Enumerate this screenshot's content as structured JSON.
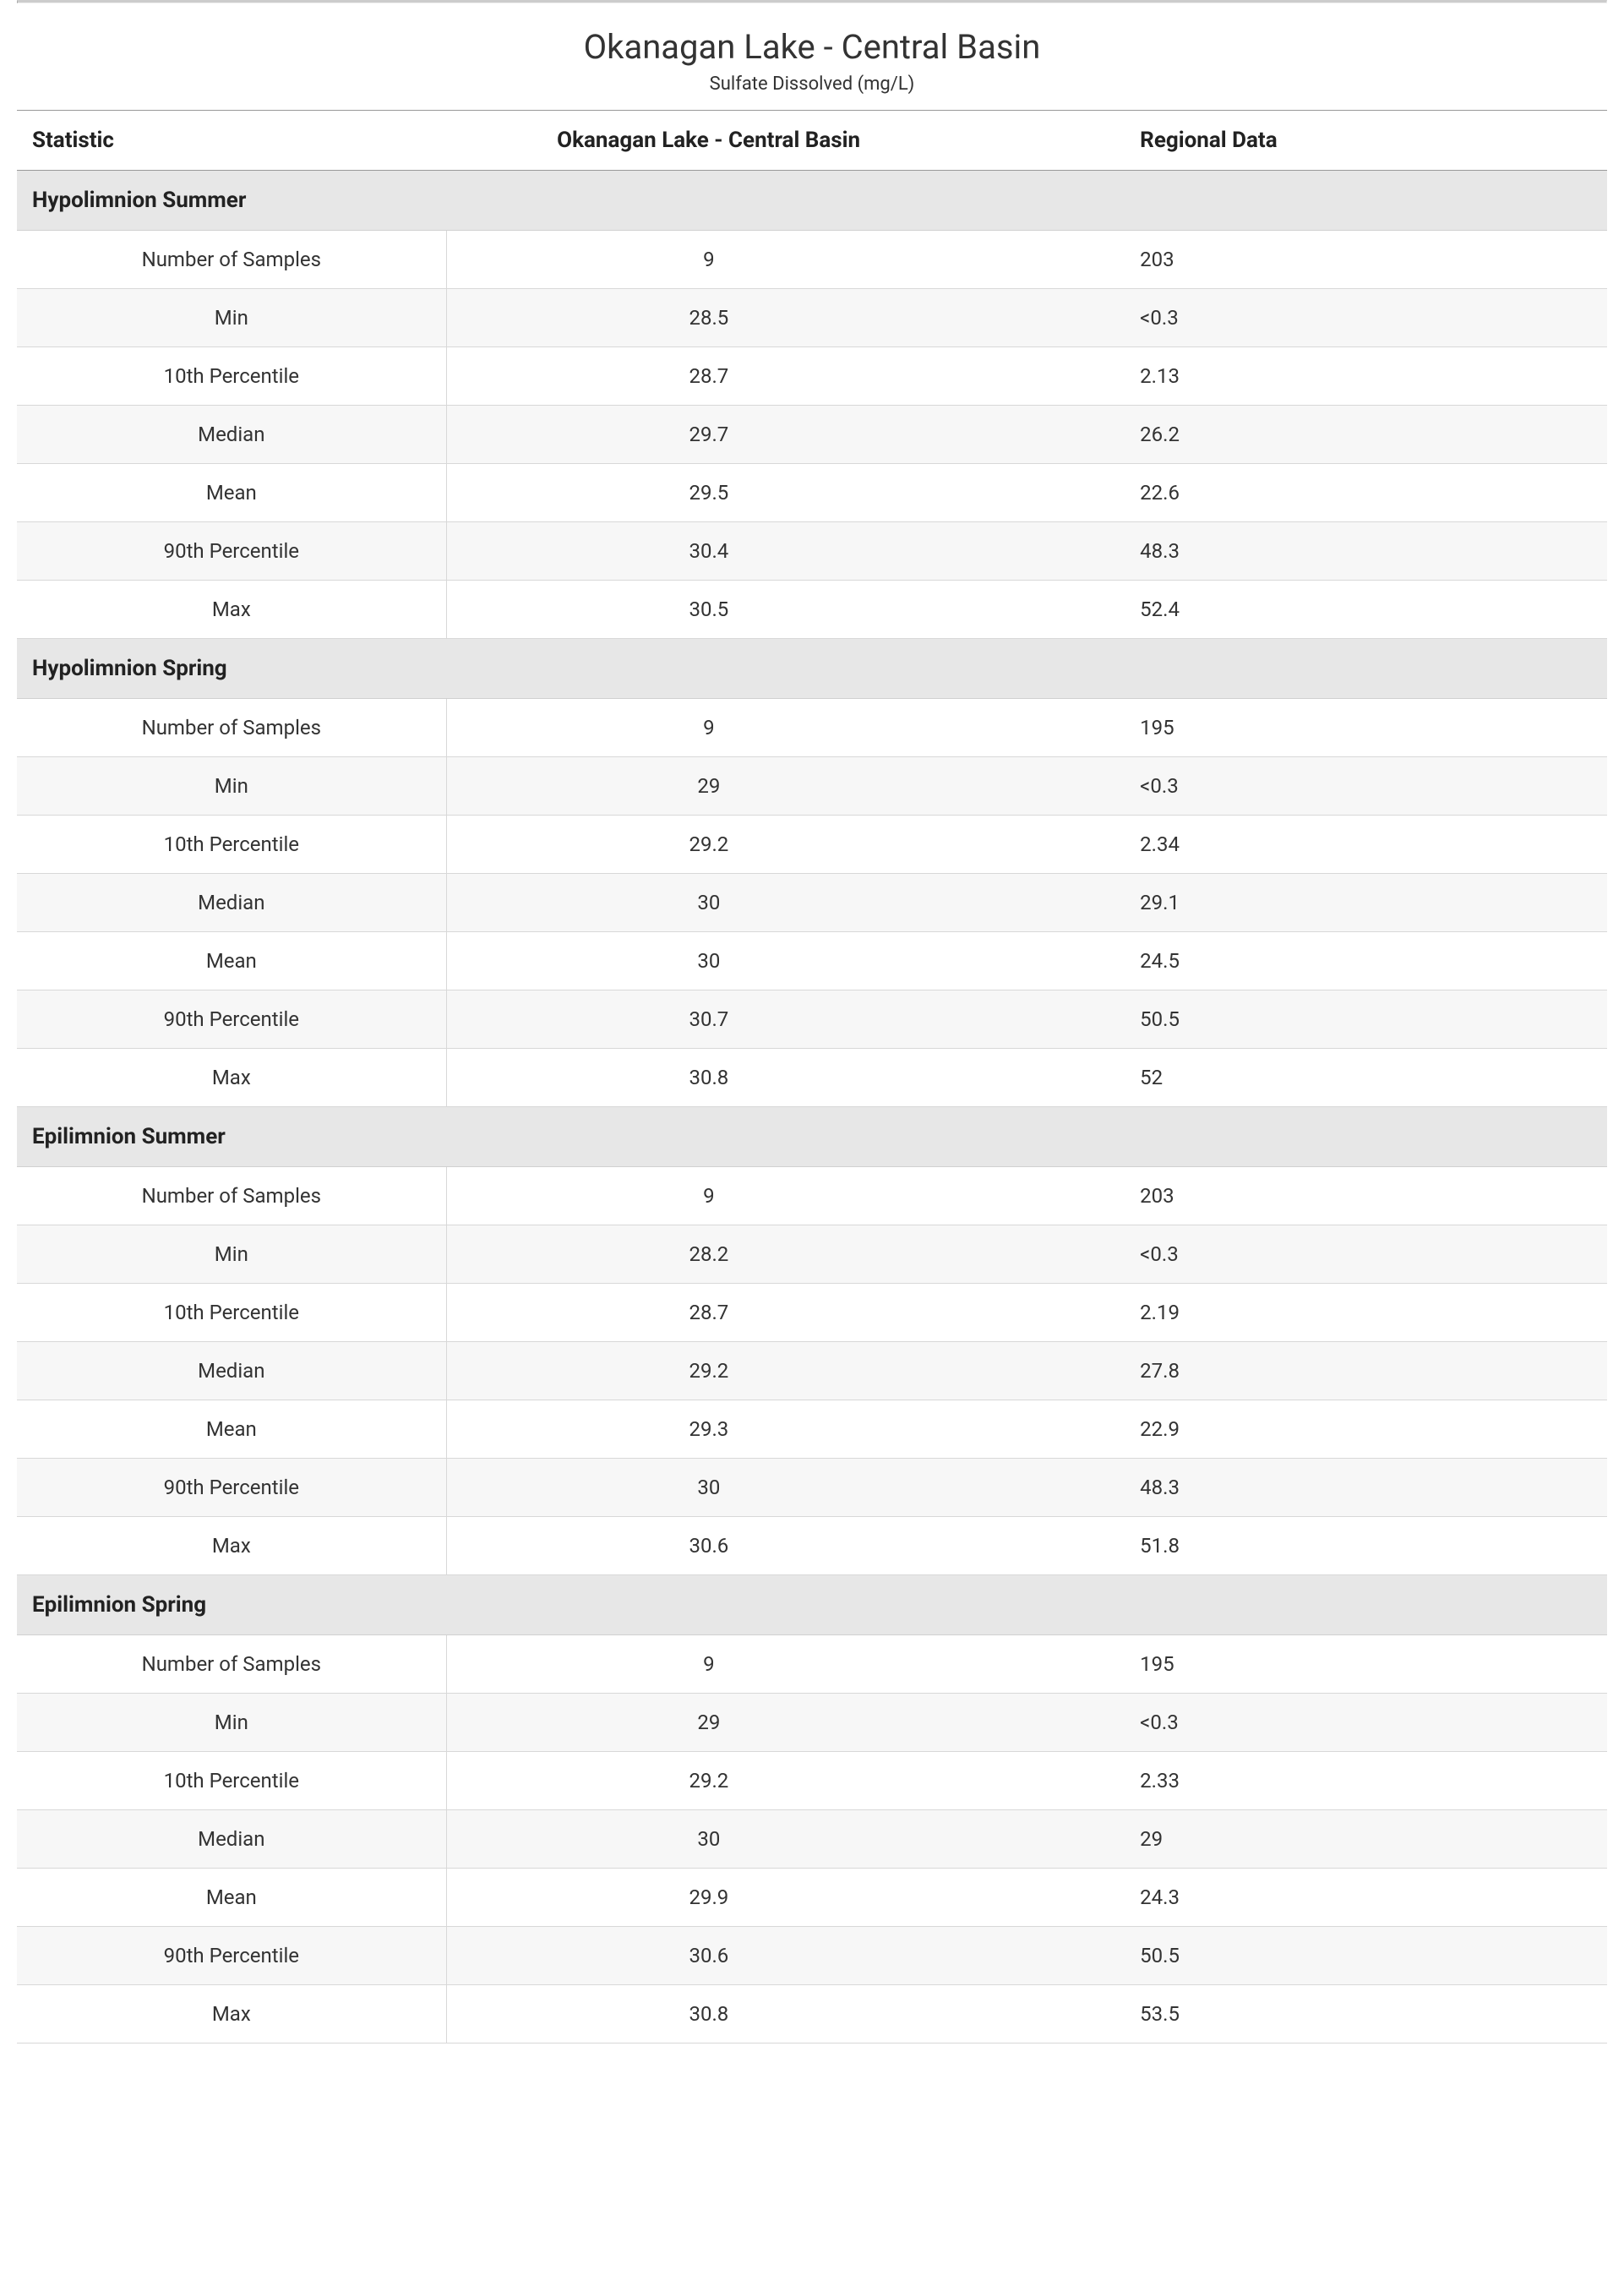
{
  "title": "Okanagan Lake - Central Basin",
  "subtitle": "Sulfate Dissolved (mg/L)",
  "columns": {
    "stat": "Statistic",
    "site": "Okanagan Lake - Central Basin",
    "regional": "Regional Data"
  },
  "stat_labels": [
    "Number of Samples",
    "Min",
    "10th Percentile",
    "Median",
    "Mean",
    "90th Percentile",
    "Max"
  ],
  "sections": [
    {
      "name": "Hypolimnion Summer",
      "rows": [
        {
          "site": "9",
          "regional": "203"
        },
        {
          "site": "28.5",
          "regional": "<0.3"
        },
        {
          "site": "28.7",
          "regional": "2.13"
        },
        {
          "site": "29.7",
          "regional": "26.2"
        },
        {
          "site": "29.5",
          "regional": "22.6"
        },
        {
          "site": "30.4",
          "regional": "48.3"
        },
        {
          "site": "30.5",
          "regional": "52.4"
        }
      ]
    },
    {
      "name": "Hypolimnion Spring",
      "rows": [
        {
          "site": "9",
          "regional": "195"
        },
        {
          "site": "29",
          "regional": "<0.3"
        },
        {
          "site": "29.2",
          "regional": "2.34"
        },
        {
          "site": "30",
          "regional": "29.1"
        },
        {
          "site": "30",
          "regional": "24.5"
        },
        {
          "site": "30.7",
          "regional": "50.5"
        },
        {
          "site": "30.8",
          "regional": "52"
        }
      ]
    },
    {
      "name": "Epilimnion Summer",
      "rows": [
        {
          "site": "9",
          "regional": "203"
        },
        {
          "site": "28.2",
          "regional": "<0.3"
        },
        {
          "site": "28.7",
          "regional": "2.19"
        },
        {
          "site": "29.2",
          "regional": "27.8"
        },
        {
          "site": "29.3",
          "regional": "22.9"
        },
        {
          "site": "30",
          "regional": "48.3"
        },
        {
          "site": "30.6",
          "regional": "51.8"
        }
      ]
    },
    {
      "name": "Epilimnion Spring",
      "rows": [
        {
          "site": "9",
          "regional": "195"
        },
        {
          "site": "29",
          "regional": "<0.3"
        },
        {
          "site": "29.2",
          "regional": "2.33"
        },
        {
          "site": "30",
          "regional": "29"
        },
        {
          "site": "29.9",
          "regional": "24.3"
        },
        {
          "site": "30.6",
          "regional": "50.5"
        },
        {
          "site": "30.8",
          "regional": "53.5"
        }
      ]
    }
  ],
  "style": {
    "background_color": "#ffffff",
    "text_color": "#333333",
    "header_text_color": "#222222",
    "section_bg": "#e7e7e7",
    "alt_row_bg": "#f7f7f7",
    "border_color": "#d8d8d8",
    "header_border_color": "#999999",
    "top_rule_color": "#cccccc",
    "title_fontsize": 40,
    "subtitle_fontsize": 22,
    "header_fontsize": 26,
    "body_fontsize": 24
  }
}
